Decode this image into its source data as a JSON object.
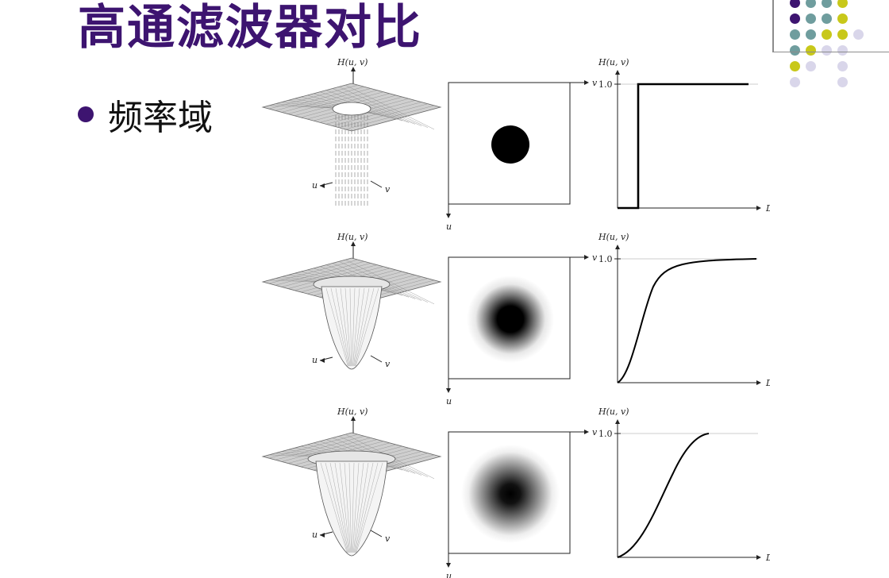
{
  "slide": {
    "title": "高通滤波器对比",
    "bullet": "频率域"
  },
  "figure": {
    "surface_label": "H(u, v)",
    "axis_u": "u",
    "axis_v": "v",
    "profile_x_label": "D(u, v)",
    "profile_y_label": "H(u, v)",
    "profile_tick": "1.0",
    "rows": [
      {
        "filter": "ideal"
      },
      {
        "filter": "butterworth"
      },
      {
        "filter": "gaussian"
      }
    ]
  },
  "colors": {
    "title": "#3d1470",
    "accent_purple": "#3d1470",
    "accent_teal": "#6f9d9e",
    "accent_yellow": "#c8c81a",
    "accent_lavender": "#d9d6ea"
  }
}
